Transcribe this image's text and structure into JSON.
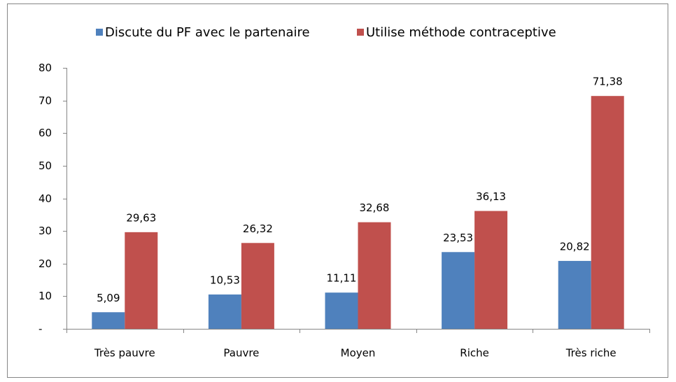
{
  "chart_data": {
    "type": "bar",
    "categories": [
      "Très pauvre",
      "Pauvre",
      "Moyen",
      "Riche",
      "Très riche"
    ],
    "series": [
      {
        "name": "Discute du PF avec le partenaire",
        "color": "#4f81bd",
        "values": [
          5.09,
          10.53,
          11.11,
          23.53,
          20.82
        ],
        "value_labels": [
          "5,09",
          "10,53",
          "11,11",
          "23,53",
          "20,82"
        ]
      },
      {
        "name": "Utilise méthode contraceptive",
        "color": "#c0504d",
        "values": [
          29.63,
          26.32,
          32.68,
          36.13,
          71.38
        ],
        "value_labels": [
          "29,63",
          "26,32",
          "32,68",
          "36,13",
          "71,38"
        ]
      }
    ],
    "ylim": [
      0,
      80
    ],
    "yticks": [
      {
        "value": 0,
        "label": "-"
      },
      10,
      20,
      30,
      40,
      50,
      60,
      70,
      80
    ],
    "legend": "top"
  }
}
